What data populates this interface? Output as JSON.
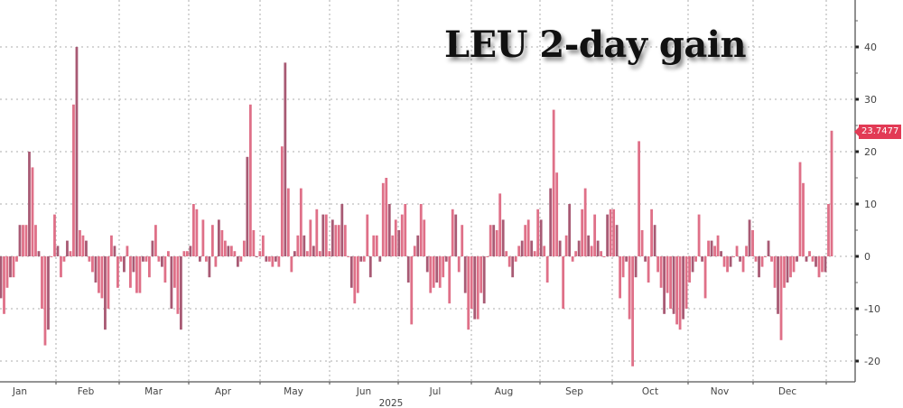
{
  "chart_data": {
    "type": "bar",
    "title": "LEU 2-day gain",
    "xlabel": "2025",
    "ylabel": "",
    "ylim": [
      -24,
      50
    ],
    "y_ticks": [
      "40",
      "30",
      "20",
      "10",
      "0",
      "-10",
      "-20"
    ],
    "x_tick_labels": [
      "Jan",
      "Feb",
      "Mar",
      "Apr",
      "May",
      "Jun",
      "Jul",
      "Aug",
      "Sep",
      "Oct",
      "Nov",
      "Dec"
    ],
    "y_axis_position": "right",
    "grid": true,
    "last_value_label": "23.7477",
    "colors": {
      "bar": "#df7088",
      "bar_dark": "#a85a74",
      "last_label": "#e23a55",
      "grid": "#c8c8c8"
    },
    "values": [
      -8,
      -11,
      -6,
      -4,
      -4,
      -1,
      6,
      6,
      6,
      20,
      17,
      6,
      1,
      -10,
      -17,
      -14,
      0,
      8,
      2,
      -4,
      -1,
      3,
      1,
      29,
      40,
      5,
      4,
      3,
      -1,
      -3,
      -5,
      -7,
      -8,
      -14,
      -10,
      4,
      2,
      -6,
      -1,
      -3,
      2,
      -6,
      -3,
      -7,
      -7,
      -1,
      -1,
      -4,
      3,
      6,
      -1,
      -2,
      -5,
      1,
      -10,
      -6,
      -11,
      -14,
      1,
      1,
      2,
      10,
      9,
      -1,
      7,
      -1,
      -4,
      6,
      -2,
      7,
      5,
      3,
      2,
      2,
      1,
      -2,
      -1,
      3,
      19,
      29,
      5,
      0,
      1,
      4,
      -1,
      -1,
      -2,
      -1,
      -2,
      21,
      37,
      13,
      -3,
      1,
      4,
      13,
      4,
      1,
      7,
      2,
      9,
      1,
      8,
      8,
      1,
      7,
      6,
      6,
      10,
      6,
      0,
      -6,
      -9,
      -7,
      -1,
      -1,
      8,
      -4,
      4,
      4,
      -1,
      14,
      15,
      10,
      4,
      7,
      5,
      8,
      10,
      -5,
      -13,
      2,
      4,
      10,
      7,
      -3,
      -7,
      -6,
      -5,
      -6,
      -4,
      -1,
      -9,
      9,
      8,
      -3,
      6,
      -7,
      -14,
      -10,
      -12,
      -12,
      -7,
      -9,
      0,
      6,
      6,
      5,
      12,
      7,
      1,
      -2,
      -4,
      -1,
      2,
      3,
      6,
      7,
      3,
      1,
      9,
      7,
      2,
      -5,
      13,
      28,
      16,
      3,
      -10,
      4,
      10,
      -1,
      1,
      3,
      9,
      13,
      4,
      2,
      8,
      3,
      1,
      0,
      8,
      9,
      9,
      6,
      -8,
      -4,
      -1,
      -12,
      -21,
      -4,
      22,
      5,
      -1,
      -5,
      9,
      6,
      -3,
      -6,
      -11,
      -7,
      -10,
      -11,
      -13,
      -14,
      -12,
      -10,
      -5,
      -3,
      -1,
      8,
      -1,
      -8,
      3,
      3,
      2,
      4,
      1,
      -2,
      -3,
      -2,
      0,
      2,
      -1,
      -3,
      2,
      7,
      5,
      -1,
      -4,
      -2,
      0,
      3,
      -1,
      -6,
      -11,
      -16,
      -6,
      -5,
      -4,
      -3,
      -1,
      18,
      14,
      -1,
      1,
      -1,
      -2,
      -4,
      -3,
      -3,
      10,
      24
    ]
  }
}
